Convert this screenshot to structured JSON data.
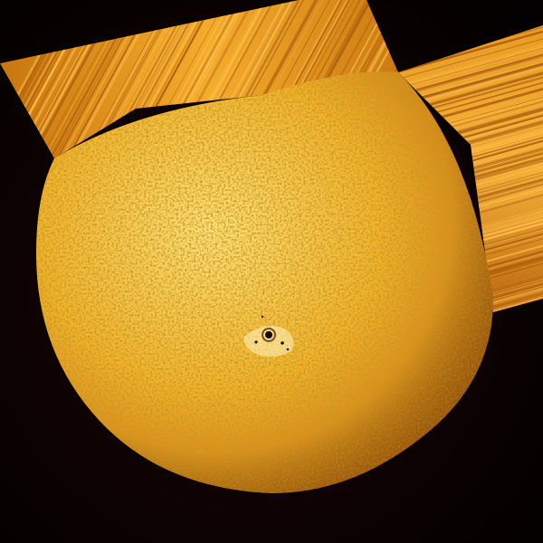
{
  "colors": {
    "space_center": "#1a0503",
    "space_edge": "#020000",
    "disk_highlight": "#ffe27a",
    "disk_mid": "#f3b229",
    "disk_edge": "#c46c0a",
    "streak_light": "#ffc04a",
    "streak_dark": "#a4560a",
    "granule_dark": "#b36a0c",
    "granule_light": "#fff0a8",
    "spot_core": "#120600",
    "plage": "#fff6c2"
  },
  "scene": {
    "subject": "sun-disk",
    "artifacts": [
      "streak-band-upper-left",
      "streak-band-right"
    ],
    "features": [
      "sunspot-group"
    ]
  }
}
